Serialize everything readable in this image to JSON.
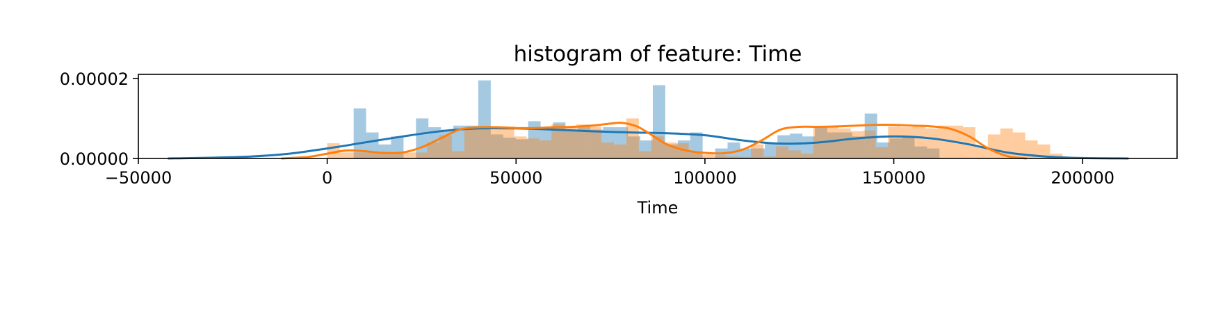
{
  "chart_data": {
    "type": "histogram",
    "title": "histogram of feature: Time",
    "xlabel": "Time",
    "ylabel": "",
    "xlim": [
      -50000,
      225000
    ],
    "ylim": [
      0,
      2.1e-05
    ],
    "x_ticks": [
      -50000,
      0,
      50000,
      100000,
      150000,
      200000
    ],
    "x_tick_labels": [
      "−50000",
      "0",
      "50000",
      "100000",
      "150000",
      "200000"
    ],
    "y_ticks": [
      0,
      2e-05
    ],
    "y_tick_labels": [
      "0.00000",
      "0.00002"
    ],
    "grid": false,
    "colors": {
      "series_0": "#1f77b4",
      "series_1": "#ff7f0e"
    },
    "series": [
      {
        "hist": {
          "start": 7000,
          "bin_width": 3300,
          "values": [
            1.25e-05,
            6.5e-06,
            3.5e-06,
            5.5e-06,
            0.0,
            1e-05,
            7.8e-06,
            7.2e-06,
            8.2e-06,
            8.2e-06,
            1.95e-05,
            6e-06,
            5.2e-06,
            4.8e-06,
            9.3e-06,
            7.8e-06,
            9e-06,
            7.2e-06,
            8e-06,
            7.2e-06,
            7.8e-06,
            7.8e-06,
            5.5e-06,
            4.5e-06,
            1.83e-05,
            3.5e-06,
            4.5e-06,
            6.5e-06,
            0.0,
            2.5e-06,
            4e-06,
            2.5e-06,
            2.5e-06,
            4e-06,
            5.8e-06,
            6.2e-06,
            5.5e-06,
            7.8e-06,
            6.5e-06,
            6.5e-06,
            5.5e-06,
            1.12e-05,
            4e-06,
            5e-06,
            5.5e-06,
            3e-06,
            2.5e-06
          ]
        },
        "kde": {
          "x": [
            -42000,
            -30000,
            -20000,
            -10000,
            0,
            10000,
            20000,
            30000,
            40000,
            50000,
            60000,
            70000,
            80000,
            90000,
            100000,
            110000,
            120000,
            130000,
            140000,
            150000,
            160000,
            170000,
            180000,
            190000,
            200000,
            212000
          ],
          "y": [
            0.0,
            2e-07,
            5e-07,
            1.2e-06,
            2.5e-06,
            4e-06,
            5.5e-06,
            6.8e-06,
            7.5e-06,
            7.5e-06,
            7.2e-06,
            6.8e-06,
            6.5e-06,
            6.3e-06,
            5.8e-06,
            4.5e-06,
            3.7e-06,
            4e-06,
            5e-06,
            5.5e-06,
            5e-06,
            3.5e-06,
            1.5e-06,
            5e-07,
            1e-07,
            0.0
          ]
        }
      },
      {
        "hist": {
          "start": 0,
          "bin_width": 3300,
          "values": [
            3.8e-06,
            1.5e-06,
            1.5e-06,
            1.5e-06,
            1.5e-06,
            1.5e-06,
            1.5e-06,
            1.5e-06,
            4e-06,
            5.8e-06,
            1.8e-06,
            7.5e-06,
            8e-06,
            8e-06,
            8e-06,
            5.5e-06,
            5e-06,
            4.5e-06,
            8.5e-06,
            8e-06,
            8.5e-06,
            8e-06,
            4e-06,
            3.5e-06,
            1e-05,
            1.8e-06,
            5.5e-06,
            4e-06,
            3.8e-06,
            1.5e-06,
            1e-06,
            8e-07,
            5e-07,
            4e-07,
            3.5e-06,
            5e-07,
            3e-06,
            2e-06,
            1.2e-06,
            8e-06,
            8e-06,
            7.5e-06,
            6.8e-06,
            7e-06,
            2.8e-06,
            8e-06,
            7.8e-06,
            8e-06,
            7.5e-06,
            8.2e-06,
            8.2e-06,
            7.8e-06,
            3e-06,
            6e-06,
            7.5e-06,
            6.5e-06,
            4.5e-06,
            3.5e-06,
            1.2e-06
          ]
        },
        "kde": {
          "x": [
            -12000,
            -5000,
            0,
            5000,
            10000,
            15000,
            20000,
            25000,
            30000,
            35000,
            40000,
            45000,
            50000,
            55000,
            60000,
            65000,
            70000,
            75000,
            78000,
            82000,
            86000,
            90000,
            95000,
            100000,
            105000,
            110000,
            115000,
            120000,
            125000,
            130000,
            135000,
            140000,
            145000,
            150000,
            155000,
            160000,
            165000,
            170000,
            175000,
            180000,
            185000
          ],
          "y": [
            0.0,
            4e-07,
            1.2e-06,
            2e-06,
            1.8e-06,
            1.4e-06,
            1.5e-06,
            2.8e-06,
            5e-06,
            7.2e-06,
            7.8e-06,
            7.8e-06,
            7.6e-06,
            7.6e-06,
            7.8e-06,
            7.9e-06,
            8.2e-06,
            8.7e-06,
            8.9e-06,
            8e-06,
            5.8e-06,
            3.5e-06,
            2e-06,
            1.4e-06,
            1.3e-06,
            2.2e-06,
            4.5e-06,
            7.2e-06,
            7.9e-06,
            7.9e-06,
            8e-06,
            8.2e-06,
            8.4e-06,
            8.4e-06,
            8.2e-06,
            8e-06,
            7.4e-06,
            5.5e-06,
            2.5e-06,
            6e-07,
            0.0
          ]
        }
      }
    ]
  }
}
